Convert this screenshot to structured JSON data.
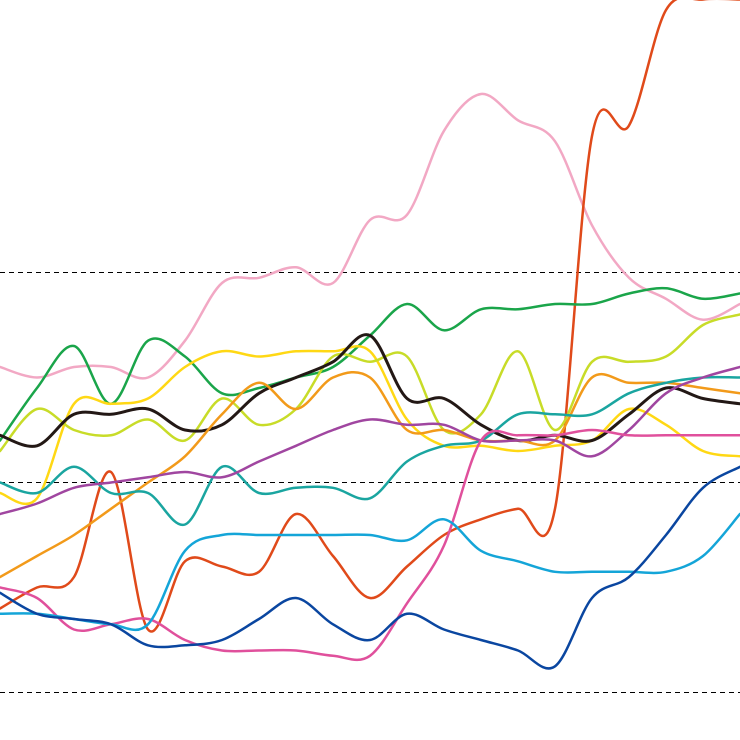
{
  "chart_data": {
    "type": "line",
    "title": "",
    "xlabel": "",
    "ylabel": "",
    "xlim": [
      0,
      100
    ],
    "ylim": [
      0,
      140
    ],
    "grid": {
      "horizontal_dashed_lines_at": [
        10,
        50,
        90
      ],
      "vertical": false
    },
    "x": [
      0,
      5,
      10,
      15,
      20,
      25,
      30,
      35,
      40,
      45,
      50,
      55,
      60,
      65,
      70,
      75,
      80,
      85,
      90,
      95,
      100
    ],
    "series": [
      {
        "color": "#f2a8c4",
        "width": 2.5,
        "values": [
          72,
          70,
          72,
          72,
          70,
          77,
          88,
          89,
          91,
          88,
          100,
          101,
          117,
          124,
          119,
          115,
          99,
          89,
          85,
          81,
          84
        ]
      },
      {
        "color": "#e04a1a",
        "width": 2.5,
        "values": [
          26,
          30,
          32,
          52,
          22,
          35,
          34,
          33,
          44,
          36,
          28,
          34,
          40,
          43,
          45,
          45,
          116,
          118,
          140,
          142,
          142
        ]
      },
      {
        "color": "#1aa54a",
        "width": 2.5,
        "values": [
          58,
          68,
          76,
          65,
          77,
          74,
          67,
          68,
          70,
          72,
          78,
          84,
          79,
          83,
          83,
          84,
          84,
          86,
          87,
          85,
          86
        ]
      },
      {
        "color": "#ffd814",
        "width": 2.5,
        "values": [
          48,
          47,
          65,
          65,
          66,
          72,
          75,
          74,
          75,
          75,
          75,
          62,
          57,
          57,
          56,
          57,
          58,
          64,
          61,
          56,
          55
        ]
      },
      {
        "color": "#c8dc28",
        "width": 2.5,
        "values": [
          56,
          64,
          60,
          59,
          62,
          58,
          66,
          61,
          64,
          74,
          73,
          74,
          60,
          63,
          75,
          60,
          73,
          73,
          74,
          80,
          82
        ]
      },
      {
        "color": "#231815",
        "width": 3.0,
        "values": [
          59,
          57,
          63,
          63,
          64,
          60,
          61,
          67,
          70,
          73,
          78,
          66,
          66,
          61,
          58,
          59,
          58,
          63,
          68,
          66,
          65
        ]
      },
      {
        "color": "#f29a1a",
        "width": 2.5,
        "values": [
          32,
          36,
          40,
          45,
          50,
          55,
          63,
          69,
          64,
          70,
          70,
          60,
          60,
          58,
          58,
          58,
          70,
          69,
          69,
          68,
          67
        ]
      },
      {
        "color": "#1aa5a0",
        "width": 2.5,
        "values": [
          50,
          48,
          53,
          48,
          48,
          42,
          53,
          48,
          49,
          49,
          47,
          54,
          57,
          58,
          63,
          63,
          63,
          67,
          69,
          70,
          70
        ]
      },
      {
        "color": "#a046a0",
        "width": 2.5,
        "values": [
          44,
          46,
          49,
          50,
          51,
          52,
          51,
          54,
          57,
          60,
          62,
          61,
          61,
          58,
          58,
          58,
          55,
          60,
          67,
          70,
          72
        ]
      },
      {
        "color": "#e0509c",
        "width": 2.5,
        "values": [
          30,
          28,
          22,
          23,
          24,
          20,
          18,
          18,
          18,
          17,
          17,
          27,
          38,
          58,
          59,
          59,
          60,
          59,
          59,
          59,
          59
        ]
      },
      {
        "color": "#14a5d8",
        "width": 2.5,
        "values": [
          25,
          25,
          24,
          23,
          23,
          37,
          40,
          40,
          40,
          40,
          40,
          39,
          43,
          37,
          35,
          33,
          33,
          33,
          33,
          36,
          44
        ]
      },
      {
        "color": "#0a46a0",
        "width": 2.5,
        "values": [
          29,
          25,
          24,
          23,
          19,
          19,
          20,
          24,
          28,
          23,
          20,
          25,
          22,
          20,
          18,
          15,
          28,
          32,
          40,
          49,
          53
        ]
      }
    ]
  }
}
